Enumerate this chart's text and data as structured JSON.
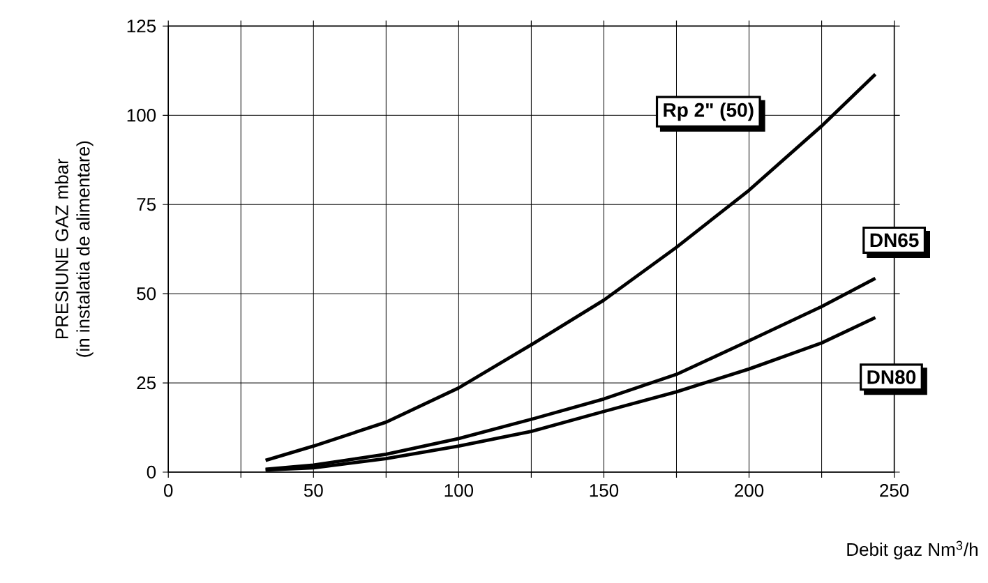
{
  "chart_data": {
    "type": "line",
    "xlabel": "Debit gaz Nm$^{3}$/h",
    "ylabel": "PRESIUNE GAZ mbar",
    "annotations": [
      "(in instalatia de alimentare)"
    ],
    "xlim": [
      0,
      250
    ],
    "ylim": [
      0,
      125
    ],
    "xticks": [
      0,
      {
        "value": 25,
        "label": null
      },
      50,
      {
        "value": 75,
        "label": null
      },
      100,
      {
        "value": 125,
        "label": null
      },
      150,
      {
        "value": 175,
        "label": null
      },
      200,
      {
        "value": 225,
        "label": null
      },
      250
    ],
    "yticks": [
      0,
      25,
      50,
      75,
      100,
      125
    ],
    "grid": true,
    "legend": false,
    "marker": "none",
    "line_style": "solid",
    "series": [
      {
        "name": "Rp 2\" (50)",
        "color": "#000000",
        "x": [
          33.5,
          50,
          75,
          100,
          125,
          150,
          175,
          200,
          225,
          243.5
        ],
        "values": [
          3.3,
          7.3,
          14,
          23.6,
          35.7,
          48.2,
          63,
          79,
          97,
          111.5
        ]
      },
      {
        "name": "DN65",
        "color": "#000000",
        "x": [
          33.5,
          50,
          75,
          100,
          125,
          150,
          175,
          200,
          225,
          243.5
        ],
        "values": [
          0.8,
          2,
          5,
          9.4,
          14.8,
          20.5,
          27.4,
          36.8,
          46.4,
          54.3
        ]
      },
      {
        "name": "DN80",
        "color": "#000000",
        "x": [
          33.5,
          50,
          75,
          100,
          125,
          150,
          175,
          200,
          225,
          243.5
        ],
        "values": [
          0.6,
          1.2,
          3.8,
          7.3,
          11.4,
          17,
          22.5,
          28.9,
          36.2,
          43.3
        ]
      }
    ]
  }
}
